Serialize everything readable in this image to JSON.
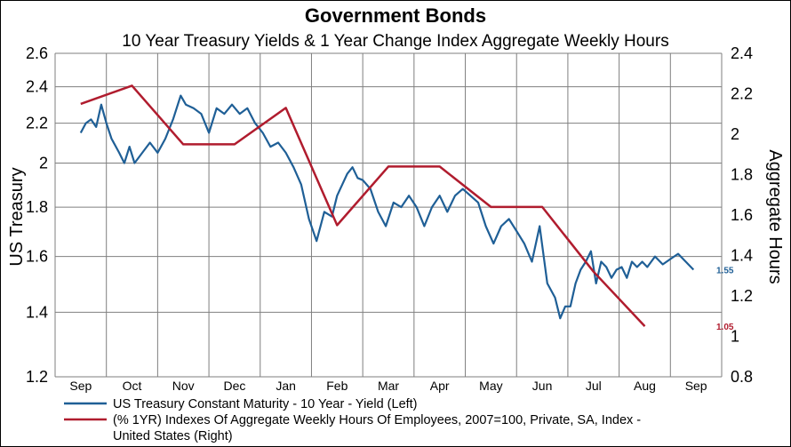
{
  "chart_data": {
    "type": "line",
    "title": "Government Bonds",
    "subtitle": "10 Year Treasury Yields & 1 Year Change Index Aggregate Weekly Hours",
    "ylabel_left": "US Treasury",
    "ylabel_right": "Aggregate Hours",
    "ylim_left": [
      1.2,
      2.6
    ],
    "ylim_right": [
      0.8,
      2.4
    ],
    "y_left_scale": "log",
    "yticks_left": [
      "2.6",
      "2.4",
      "2.2",
      "2",
      "1.8",
      "1.6",
      "1.4",
      "1.2"
    ],
    "yticks_right": [
      "2.4",
      "2.2",
      "2",
      "1.8",
      "1.6",
      "1.4",
      "1.2",
      "1",
      "0.8"
    ],
    "months": [
      "Sep",
      "Oct",
      "Nov",
      "Dec",
      "Jan",
      "Feb",
      "Mar",
      "Apr",
      "May",
      "Jun",
      "Jul",
      "Aug",
      "Sep"
    ],
    "grid": true,
    "legend_position": "bottom",
    "series": [
      {
        "name": "US Treasury Constant Maturity - 10 Year - Yield  (Left)",
        "axis": "left",
        "color": "#1f5f96",
        "last_value_label": "1.55",
        "x": [
          0.0,
          0.1,
          0.2,
          0.3,
          0.4,
          0.5,
          0.6,
          0.75,
          0.85,
          0.95,
          1.05,
          1.2,
          1.35,
          1.5,
          1.65,
          1.8,
          1.95,
          2.05,
          2.2,
          2.35,
          2.5,
          2.65,
          2.8,
          2.95,
          3.1,
          3.25,
          3.4,
          3.55,
          3.7,
          3.85,
          4.0,
          4.15,
          4.3,
          4.45,
          4.6,
          4.75,
          4.9,
          5.0,
          5.1,
          5.2,
          5.3,
          5.4,
          5.5,
          5.65,
          5.8,
          5.95,
          6.1,
          6.25,
          6.4,
          6.55,
          6.7,
          6.85,
          7.0,
          7.15,
          7.3,
          7.45,
          7.6,
          7.75,
          7.9,
          8.05,
          8.2,
          8.35,
          8.5,
          8.65,
          8.8,
          8.95,
          9.1,
          9.25,
          9.35,
          9.45,
          9.55,
          9.65,
          9.75,
          9.85,
          9.95,
          10.05,
          10.15,
          10.25,
          10.35,
          10.45,
          10.55,
          10.65,
          10.75,
          10.85,
          10.95,
          11.05,
          11.2,
          11.35,
          11.5,
          11.65,
          11.8,
          11.95
        ],
        "values": [
          2.15,
          2.2,
          2.22,
          2.18,
          2.3,
          2.2,
          2.12,
          2.05,
          2.0,
          2.08,
          2.0,
          2.05,
          2.1,
          2.05,
          2.12,
          2.22,
          2.35,
          2.3,
          2.28,
          2.25,
          2.15,
          2.28,
          2.25,
          2.3,
          2.25,
          2.28,
          2.2,
          2.15,
          2.08,
          2.1,
          2.05,
          1.98,
          1.9,
          1.75,
          1.66,
          1.78,
          1.76,
          1.85,
          1.9,
          1.95,
          1.98,
          1.93,
          1.92,
          1.88,
          1.78,
          1.72,
          1.82,
          1.8,
          1.85,
          1.8,
          1.72,
          1.8,
          1.85,
          1.78,
          1.85,
          1.88,
          1.85,
          1.82,
          1.72,
          1.65,
          1.72,
          1.75,
          1.7,
          1.65,
          1.58,
          1.72,
          1.5,
          1.45,
          1.38,
          1.42,
          1.42,
          1.5,
          1.55,
          1.58,
          1.62,
          1.5,
          1.58,
          1.56,
          1.52,
          1.55,
          1.56,
          1.52,
          1.58,
          1.56,
          1.58,
          1.56,
          1.6,
          1.57,
          1.59,
          1.61,
          1.58,
          1.55
        ]
      },
      {
        "name": "(% 1YR) Indexes Of Aggregate Weekly Hours Of Employees, 2007=100, Private, SA, Index - United States  (Right)",
        "axis": "right",
        "color": "#b01c2e",
        "last_value_label": "1.05",
        "x": [
          0.0,
          1.0,
          2.0,
          3.0,
          4.0,
          5.0,
          6.0,
          7.0,
          8.0,
          9.0,
          10.0,
          11.0
        ],
        "values": [
          2.15,
          2.24,
          1.95,
          1.95,
          2.13,
          1.55,
          1.84,
          1.84,
          1.64,
          1.64,
          1.32,
          1.05
        ]
      }
    ]
  }
}
